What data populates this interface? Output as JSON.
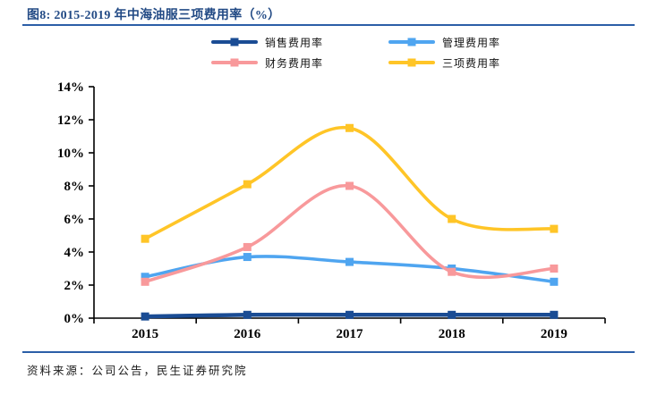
{
  "figure": {
    "title": "图8: 2015-2019 年中海油服三项费用率（%）",
    "source": "资料来源：公司公告，民生证券研究院"
  },
  "colors": {
    "title": "#224A85",
    "rule": "#2B5EA7",
    "axis": "#000000",
    "tick_label": "#000000"
  },
  "chart_data": {
    "type": "line",
    "smooth": true,
    "grid": false,
    "legend_position": "top",
    "categories": [
      "2015",
      "2016",
      "2017",
      "2018",
      "2019"
    ],
    "series": [
      {
        "name": "销售费用率",
        "color": "#1A4C94",
        "values": [
          0.1,
          0.2,
          0.2,
          0.2,
          0.2
        ]
      },
      {
        "name": "管理费用率",
        "color": "#4FA5F0",
        "values": [
          2.5,
          3.7,
          3.4,
          3.0,
          2.2
        ]
      },
      {
        "name": "财务费用率",
        "color": "#F8999B",
        "values": [
          2.2,
          4.3,
          8.0,
          2.8,
          3.0
        ]
      },
      {
        "name": "三项费用率",
        "color": "#FFC527",
        "values": [
          4.8,
          8.1,
          11.5,
          6.0,
          5.4
        ]
      }
    ],
    "ylim": [
      0,
      14
    ],
    "ytick_step": 2,
    "ytick_labels": [
      "0%",
      "2%",
      "4%",
      "6%",
      "8%",
      "10%",
      "12%",
      "14%"
    ],
    "xlabel": "",
    "ylabel": ""
  }
}
